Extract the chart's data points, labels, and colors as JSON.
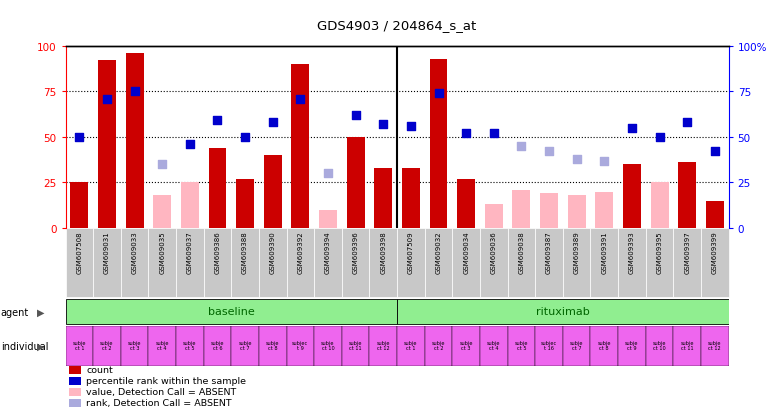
{
  "title": "GDS4903 / 204864_s_at",
  "samples": [
    "GSM607508",
    "GSM609031",
    "GSM609033",
    "GSM609035",
    "GSM609037",
    "GSM609386",
    "GSM609388",
    "GSM609390",
    "GSM609392",
    "GSM609394",
    "GSM609396",
    "GSM609398",
    "GSM607509",
    "GSM609032",
    "GSM609034",
    "GSM609036",
    "GSM609038",
    "GSM609387",
    "GSM609389",
    "GSM609391",
    "GSM609393",
    "GSM609395",
    "GSM609397",
    "GSM609399"
  ],
  "count_values": [
    25,
    92,
    96,
    0,
    0,
    44,
    27,
    40,
    90,
    0,
    50,
    33,
    33,
    93,
    27,
    0,
    0,
    0,
    0,
    0,
    35,
    0,
    36,
    15
  ],
  "count_absent": [
    false,
    false,
    false,
    true,
    true,
    false,
    false,
    false,
    false,
    true,
    false,
    false,
    false,
    false,
    false,
    true,
    true,
    true,
    true,
    true,
    false,
    true,
    false,
    false
  ],
  "count_absent_values": [
    0,
    0,
    0,
    18,
    25,
    0,
    0,
    0,
    0,
    10,
    0,
    0,
    0,
    0,
    0,
    13,
    21,
    19,
    18,
    20,
    0,
    25,
    0,
    0
  ],
  "rank_values": [
    50,
    71,
    75,
    0,
    46,
    59,
    50,
    58,
    71,
    0,
    62,
    57,
    56,
    74,
    52,
    52,
    0,
    0,
    0,
    0,
    55,
    50,
    58,
    42
  ],
  "rank_absent": [
    false,
    false,
    false,
    true,
    false,
    false,
    false,
    false,
    false,
    true,
    false,
    false,
    false,
    false,
    false,
    false,
    true,
    true,
    true,
    true,
    false,
    false,
    false,
    false
  ],
  "rank_absent_values": [
    0,
    0,
    0,
    35,
    0,
    0,
    0,
    0,
    0,
    30,
    0,
    0,
    0,
    0,
    0,
    0,
    45,
    42,
    38,
    37,
    0,
    0,
    0,
    0
  ],
  "individual_labels": [
    "subje\nct 1",
    "subje\nct 2",
    "subje\nct 3",
    "subje\nct 4",
    "subje\nct 5",
    "subje\nct 6",
    "subje\nct 7",
    "subje\nct 8",
    "subjec\nt 9",
    "subje\nct 10",
    "subje\nct 11",
    "subje\nct 12",
    "subje\nct 1",
    "subje\nct 2",
    "subje\nct 3",
    "subje\nct 4",
    "subje\nct 5",
    "subjec\nt 16",
    "subje\nct 7",
    "subje\nct 8",
    "subje\nct 9",
    "subje\nct 10",
    "subje\nct 11",
    "subje\nct 12"
  ],
  "bar_color": "#CC0000",
  "bar_absent_color": "#FFB6C1",
  "rank_color": "#0000CC",
  "rank_absent_color": "#AAAADD",
  "agent_green": "#90EE90",
  "agent_text_color": "#006600",
  "individual_pink": "#EE66EE",
  "sample_gray": "#C8C8C8",
  "divider_col": 12
}
